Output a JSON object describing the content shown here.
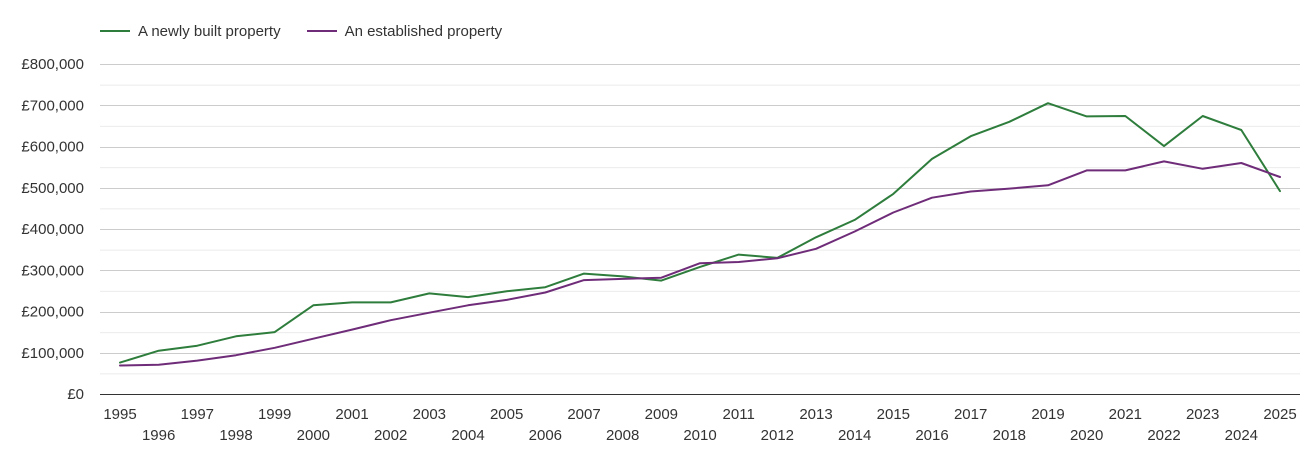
{
  "chart_data": {
    "type": "line",
    "title": "",
    "xlabel": "",
    "ylabel": "",
    "ylim": [
      0,
      800000
    ],
    "y_ticks": [
      0,
      100000,
      200000,
      300000,
      400000,
      500000,
      600000,
      700000,
      800000
    ],
    "y_tick_labels": [
      "£0",
      "£100,000",
      "£200,000",
      "£300,000",
      "£400,000",
      "£500,000",
      "£600,000",
      "£700,000",
      "£800,000"
    ],
    "x": [
      1995,
      1996,
      1997,
      1998,
      1999,
      2000,
      2001,
      2002,
      2003,
      2004,
      2005,
      2006,
      2007,
      2008,
      2009,
      2010,
      2011,
      2012,
      2013,
      2014,
      2015,
      2016,
      2017,
      2018,
      2019,
      2020,
      2021,
      2022,
      2023,
      2024,
      2025
    ],
    "x_tick_labels": [
      "1995",
      "1996",
      "1997",
      "1998",
      "1999",
      "2000",
      "2001",
      "2002",
      "2003",
      "2004",
      "2005",
      "2006",
      "2007",
      "2008",
      "2009",
      "2010",
      "2011",
      "2012",
      "2013",
      "2014",
      "2015",
      "2016",
      "2017",
      "2018",
      "2019",
      "2020",
      "2021",
      "2022",
      "2023",
      "2024",
      "2025"
    ],
    "grid": true,
    "legend_position": "top-left",
    "series": [
      {
        "name": "A newly built property",
        "color": "#2e7d3c",
        "values": [
          76000,
          105000,
          117000,
          140000,
          150000,
          215000,
          222000,
          222000,
          244000,
          235000,
          249000,
          259000,
          292000,
          285000,
          275000,
          308000,
          338000,
          330000,
          380000,
          422000,
          485000,
          570000,
          625000,
          660000,
          705000,
          673000,
          674000,
          601000,
          674000,
          640000,
          492000
        ]
      },
      {
        "name": "An established property",
        "color": "#6f2c79",
        "values": [
          69000,
          71000,
          81000,
          94000,
          112000,
          134000,
          156000,
          179000,
          197000,
          215000,
          228000,
          246000,
          276000,
          279000,
          282000,
          317000,
          320000,
          329000,
          352000,
          394000,
          440000,
          476000,
          491000,
          498000,
          506000,
          542000,
          542000,
          564000,
          546000,
          560000,
          526000
        ]
      }
    ]
  }
}
